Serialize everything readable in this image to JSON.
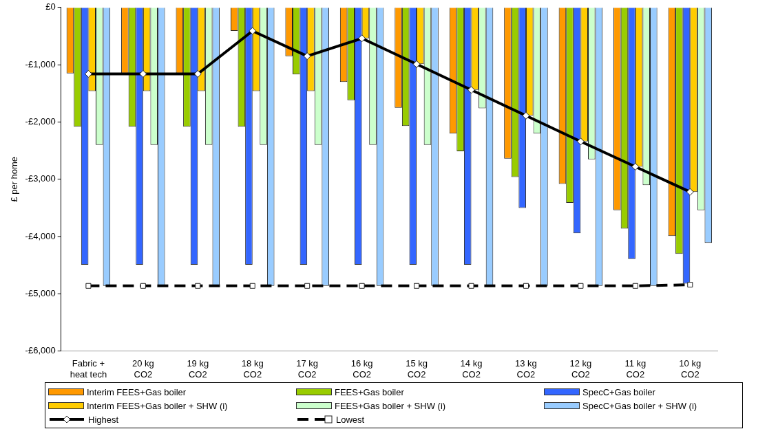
{
  "chart_data": {
    "type": "bar",
    "ylabel": "£ per home",
    "categories": [
      "Fabric + heat tech",
      "20 kg CO2",
      "19 kg CO2",
      "18 kg CO2",
      "17 kg CO2",
      "16 kg CO2",
      "15 kg CO2",
      "14 kg CO2",
      "13 kg CO2",
      "12 kg CO2",
      "11 kg CO2",
      "10 kg CO2"
    ],
    "ylim": [
      -6000,
      0
    ],
    "yticks": [
      {
        "value": -6000,
        "label": "-£6,000"
      },
      {
        "value": -5000,
        "label": "-£5,000"
      },
      {
        "value": -4000,
        "label": "-£4,000"
      },
      {
        "value": -3000,
        "label": "-£3,000"
      },
      {
        "value": -2000,
        "label": "-£2,000"
      },
      {
        "value": -1000,
        "label": "-£1,000"
      },
      {
        "value": 0,
        "label": "£0"
      }
    ],
    "grid": false,
    "legend": "bottom",
    "series": [
      {
        "name": "Interim FEES+Gas boiler",
        "color": "#ff9900",
        "values": [
          -1150,
          -1150,
          -1150,
          -410,
          -850,
          -1300,
          -1750,
          -2200,
          -2640,
          -3080,
          -3540,
          -3990
        ]
      },
      {
        "name": "FEES+Gas boiler",
        "color": "#99cc00",
        "values": [
          -2080,
          -2080,
          -2080,
          -2080,
          -1170,
          -1620,
          -2070,
          -2510,
          -2960,
          -3410,
          -3860,
          -4300
        ]
      },
      {
        "name": "SpecC+Gas boiler",
        "color": "#3366ff",
        "values": [
          -4490,
          -4490,
          -4490,
          -4490,
          -4490,
          -4490,
          -4490,
          -4490,
          -3500,
          -3940,
          -4390,
          -4820
        ]
      },
      {
        "name": "Interim FEES+Gas boiler + SHW (i)",
        "color": "#ffcc00",
        "values": [
          -1460,
          -1460,
          -1460,
          -1460,
          -1460,
          -540,
          -990,
          -1440,
          -1890,
          -2340,
          -2780,
          -3220
        ]
      },
      {
        "name": "FEES+Gas boiler + SHW (i)",
        "color": "#ccffcc",
        "values": [
          -2400,
          -2400,
          -2400,
          -2400,
          -2400,
          -2400,
          -2400,
          -1760,
          -2200,
          -2650,
          -3100,
          -3540
        ]
      },
      {
        "name": "SpecC+Gas boiler + SHW (i)",
        "color": "#99ccff",
        "values": [
          -4860,
          -4860,
          -4860,
          -4860,
          -4860,
          -4860,
          -4860,
          -4860,
          -4860,
          -4860,
          -4860,
          -4110
        ]
      },
      {
        "name": "Highest",
        "type": "line",
        "color": "#000000",
        "marker": "diamond",
        "line_style": "solid",
        "values": [
          -1160,
          -1160,
          -1160,
          -410,
          -850,
          -540,
          -990,
          -1440,
          -1890,
          -2340,
          -2780,
          -3220
        ]
      },
      {
        "name": "Lowest",
        "type": "line",
        "color": "#000000",
        "marker": "square",
        "line_style": "dashed",
        "values": [
          -4860,
          -4860,
          -4860,
          -4860,
          -4860,
          -4860,
          -4860,
          -4860,
          -4860,
          -4860,
          -4860,
          -4840
        ]
      }
    ]
  }
}
